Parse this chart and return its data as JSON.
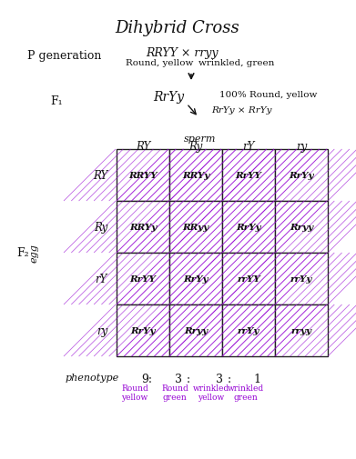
{
  "title": "Dihybrid Cross",
  "p_gen_label": "P generation",
  "p_cross": "RRYY × rryy",
  "p_desc1": "Round, yellow",
  "p_desc2": "wrinkled, green",
  "f1_label": "F₁",
  "f1_genotype": "RrYy",
  "f1_desc": "100% Round, yellow",
  "f1_cross": "RrYy × RrYy",
  "sperm_label": "sperm",
  "f2_label": "F₂",
  "egg_label": "egg",
  "col_headers": [
    "RY",
    "Ry",
    "rY",
    "ry"
  ],
  "row_headers": [
    "RY",
    "Ry",
    "rY",
    "ry"
  ],
  "cells": [
    [
      "RRYY",
      "RRYy",
      "RrYY",
      "RrYy"
    ],
    [
      "RRYy",
      "RRyy",
      "RrYy",
      "Rryy"
    ],
    [
      "RrYY",
      "RrYy",
      "rrYY",
      "rrYy"
    ],
    [
      "RrYy",
      "Rryy",
      "rrYy",
      "rryy"
    ]
  ],
  "phenotype_label": "phenotype",
  "ratios": [
    "9:",
    "3",
    ":",
    "3",
    ":",
    "1"
  ],
  "ratio_descs": [
    "Round\nyellow",
    "Round\ngreen",
    "wrinkled\nyellow",
    "wrinkled\ngreen"
  ],
  "ratio_colors": [
    "#9400D3",
    "#9400D3",
    "#9400D3",
    "#9400D3"
  ],
  "hatch_color": "#9400D3",
  "grid_color": "#222222",
  "text_color": "#111111",
  "bg_color": "#ffffff",
  "cell_bg": "#e8d8f0",
  "cell_bg2": "#f5f0fb"
}
